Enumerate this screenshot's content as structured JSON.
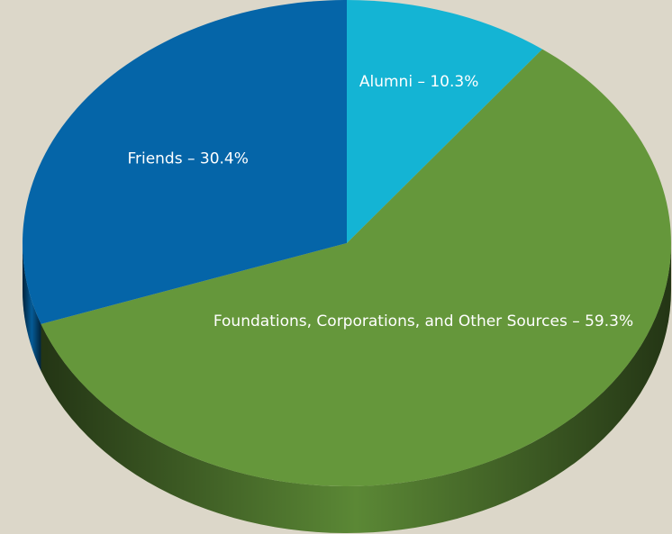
{
  "chart_data": {
    "type": "pie",
    "values": [
      10.3,
      59.3,
      30.4
    ],
    "value_labels": [
      "Alumni – 10.3%",
      "Foundations, Corporations, and Other Sources – 59.3%",
      "Friends – 30.4%"
    ],
    "colors": [
      "#14b4d4",
      "#65973b",
      "#0565a8"
    ]
  }
}
